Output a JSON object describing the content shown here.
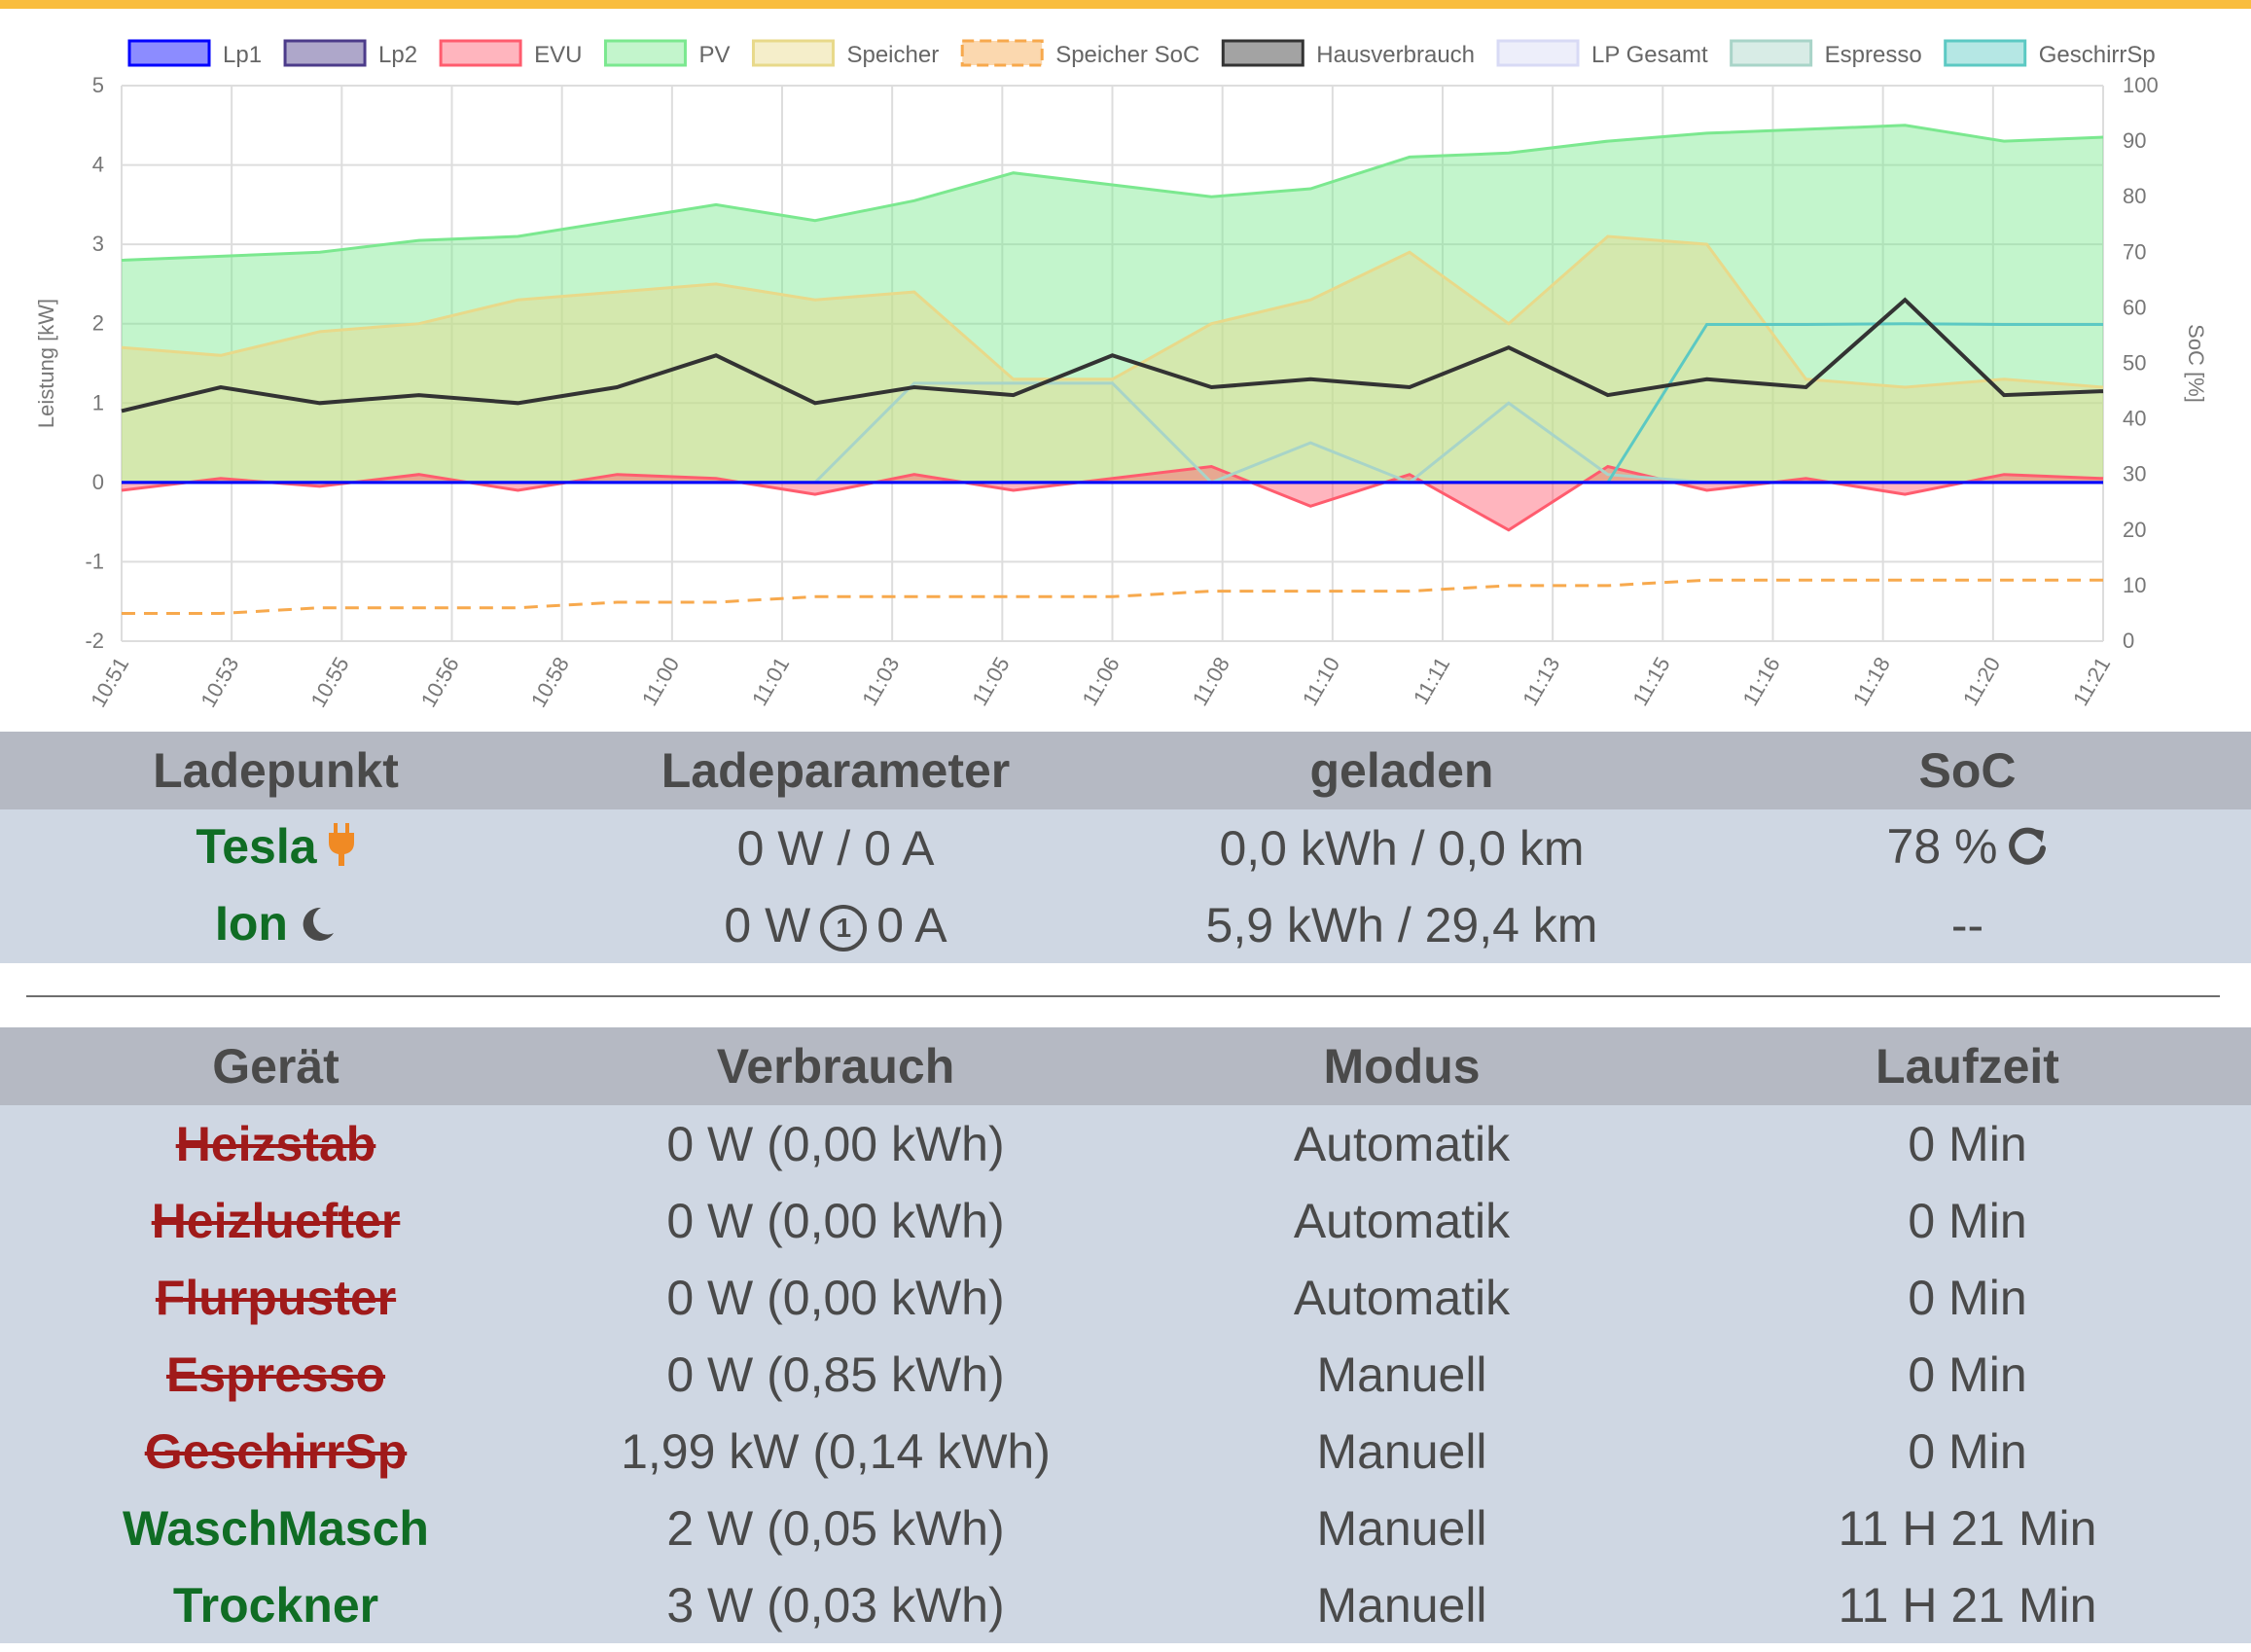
{
  "colors": {
    "accent_bar": "#f9bd3e",
    "header_bg": "#b5b9c3",
    "row_bg": "#cfd7e3",
    "active_green": "#106d24",
    "inactive_red": "#a01a1a"
  },
  "chart_data": {
    "type": "line",
    "legend_position": "top",
    "ylabel": "Leistung [kW]",
    "y2label": "SoC [%]",
    "ylim": [
      -2,
      5
    ],
    "y2lim": [
      0,
      100
    ],
    "yticks": [
      "-2",
      "-1",
      "0",
      "1",
      "2",
      "3",
      "4",
      "5"
    ],
    "y2ticks": [
      "0",
      "10",
      "20",
      "30",
      "40",
      "50",
      "60",
      "70",
      "80",
      "90",
      "100"
    ],
    "xticks": [
      "10:51",
      "10:53",
      "10:55",
      "10:56",
      "10:58",
      "11:00",
      "11:01",
      "11:03",
      "11:05",
      "11:06",
      "11:08",
      "11:10",
      "11:11",
      "11:13",
      "11:15",
      "11:16",
      "11:18",
      "11:20",
      "11:21"
    ],
    "x_minutes": [
      0,
      1.5,
      3,
      4.5,
      6,
      7.5,
      9,
      10.5,
      12,
      13.5,
      15,
      16.5,
      18,
      19.5,
      21,
      22.5,
      24,
      25.5,
      27,
      28.5,
      30
    ],
    "series": [
      {
        "name": "Lp1",
        "color": "#0000ff",
        "axis": "left",
        "fill": false,
        "values": [
          0,
          0,
          0,
          0,
          0,
          0,
          0,
          0,
          0,
          0,
          0,
          0,
          0,
          0,
          0,
          0,
          0,
          0,
          0,
          0,
          0
        ]
      },
      {
        "name": "Lp2",
        "color": "#4c3b8a",
        "axis": "left",
        "fill": false,
        "values": [
          0,
          0,
          0,
          0,
          0,
          0,
          0,
          0,
          0,
          0,
          0,
          0,
          0,
          0,
          0,
          0,
          0,
          0,
          0,
          0,
          0
        ]
      },
      {
        "name": "EVU",
        "color": "#ff5c6e",
        "axis": "left",
        "fill": true,
        "values": [
          -0.1,
          0.05,
          -0.05,
          0.1,
          -0.1,
          0.1,
          0.05,
          -0.15,
          0.1,
          -0.1,
          0.05,
          0.2,
          -0.3,
          0.1,
          -0.6,
          0.2,
          -0.1,
          0.05,
          -0.15,
          0.1,
          0.05
        ]
      },
      {
        "name": "PV",
        "color": "#7be88f",
        "axis": "left",
        "fill": true,
        "values": [
          2.8,
          2.85,
          2.9,
          3.05,
          3.1,
          3.3,
          3.5,
          3.3,
          3.55,
          3.9,
          3.75,
          3.6,
          3.7,
          4.1,
          4.15,
          4.3,
          4.4,
          4.45,
          4.5,
          4.3,
          4.35
        ]
      },
      {
        "name": "Speicher",
        "color": "#e8d98a",
        "axis": "left",
        "fill": true,
        "values": [
          1.7,
          1.6,
          1.9,
          2.0,
          2.3,
          2.4,
          2.5,
          2.3,
          2.4,
          1.3,
          1.3,
          2.0,
          2.3,
          2.9,
          2.0,
          3.1,
          3.0,
          1.3,
          1.2,
          1.3,
          1.2
        ]
      },
      {
        "name": "Speicher SoC",
        "color": "#f7a94d",
        "axis": "right",
        "fill": false,
        "dashed": true,
        "values": [
          5,
          5,
          6,
          6,
          6,
          7,
          7,
          8,
          8,
          8,
          8,
          9,
          9,
          9,
          10,
          10,
          11,
          11,
          11,
          11,
          11
        ]
      },
      {
        "name": "Hausverbrauch",
        "color": "#333333",
        "axis": "left",
        "fill": false,
        "values": [
          0.9,
          1.2,
          1.0,
          1.1,
          1.0,
          1.2,
          1.6,
          1.0,
          1.2,
          1.1,
          1.6,
          1.2,
          1.3,
          1.2,
          1.7,
          1.1,
          1.3,
          1.2,
          2.3,
          1.1,
          1.15
        ]
      },
      {
        "name": "LP Gesamt",
        "color": "#d8daf5",
        "axis": "left",
        "fill": false,
        "values": [
          0,
          0,
          0,
          0,
          0,
          0,
          0,
          0,
          0,
          0,
          0,
          0,
          0,
          0,
          0,
          0,
          0,
          0,
          0,
          0,
          0
        ]
      },
      {
        "name": "Espresso",
        "color": "#a8d4c8",
        "axis": "left",
        "fill": false,
        "values": [
          0,
          0,
          0,
          0,
          0,
          0,
          0,
          0,
          1.25,
          1.25,
          1.25,
          0,
          0.5,
          0,
          1.0,
          0.1,
          0,
          0,
          0,
          0,
          0
        ]
      },
      {
        "name": "GeschirrSp",
        "color": "#5cc9c3",
        "axis": "left",
        "fill": false,
        "values": [
          0,
          0,
          0,
          0,
          0,
          0,
          0,
          0,
          0,
          0,
          0,
          0,
          0,
          0,
          0,
          0,
          1.99,
          1.99,
          2.0,
          1.99,
          1.99
        ]
      }
    ]
  },
  "lp_table": {
    "headers": [
      "Ladepunkt",
      "Ladeparameter",
      "geladen",
      "SoC"
    ],
    "rows": [
      {
        "name": "Tesla",
        "icon": "plug-icon",
        "params": "0 W / 0 A",
        "charged": "0,0 kWh / 0,0 km",
        "soc": "78 %",
        "soc_icon": "refresh-icon"
      },
      {
        "name": "Ion",
        "icon": "moon-icon",
        "params_w": "0 W",
        "params_mode": "1",
        "params_a": "0 A",
        "charged": "5,9 kWh / 29,4 km",
        "soc": "--"
      }
    ]
  },
  "dev_table": {
    "headers": [
      "Gerät",
      "Verbrauch",
      "Modus",
      "Laufzeit"
    ],
    "rows": [
      {
        "name": "Heizstab",
        "active": false,
        "usage": "0 W (0,00 kWh)",
        "mode": "Automatik",
        "runtime": "0 Min"
      },
      {
        "name": "Heizluefter",
        "active": false,
        "usage": "0 W (0,00 kWh)",
        "mode": "Automatik",
        "runtime": "0 Min"
      },
      {
        "name": "Flurpuster",
        "active": false,
        "usage": "0 W (0,00 kWh)",
        "mode": "Automatik",
        "runtime": "0 Min"
      },
      {
        "name": "Espresso",
        "active": false,
        "usage": "0 W (0,85 kWh)",
        "mode": "Manuell",
        "runtime": "0 Min"
      },
      {
        "name": "GeschirrSp",
        "active": false,
        "usage": "1,99 kW (0,14 kWh)",
        "mode": "Manuell",
        "runtime": "0 Min"
      },
      {
        "name": "WaschMasch",
        "active": true,
        "usage": "2 W (0,05 kWh)",
        "mode": "Manuell",
        "runtime": "11 H 21 Min"
      },
      {
        "name": "Trockner",
        "active": true,
        "usage": "3 W (0,03 kWh)",
        "mode": "Manuell",
        "runtime": "11 H 21 Min"
      }
    ]
  }
}
